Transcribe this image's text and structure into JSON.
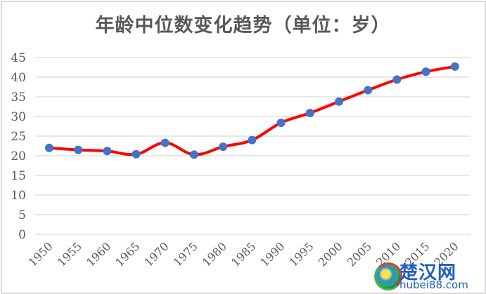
{
  "chart_data": {
    "type": "line",
    "title": "年龄中位数变化趋势（单位：岁）",
    "xlabel": "",
    "ylabel": "",
    "categories": [
      "1950",
      "1955",
      "1960",
      "1965",
      "1970",
      "1975",
      "1980",
      "1985",
      "1990",
      "1995",
      "2000",
      "2005",
      "2010",
      "2015",
      "2020"
    ],
    "series": [
      {
        "name": "年龄中位数",
        "values": [
          22.0,
          21.5,
          21.2,
          20.4,
          23.3,
          20.3,
          22.3,
          24.0,
          28.4,
          30.9,
          33.8,
          36.7,
          39.4,
          41.4,
          42.7
        ]
      }
    ],
    "yticks": [
      0,
      5,
      10,
      15,
      20,
      25,
      30,
      35,
      40,
      45
    ],
    "ylim": [
      0,
      45
    ],
    "grid": true,
    "legend": "none",
    "line_color": "#ff0000",
    "marker_color": "#4472c4",
    "gridline_color": "#d9d9d9"
  },
  "watermark": {
    "name_cn": "楚汉网",
    "url": "hubei88.com"
  }
}
